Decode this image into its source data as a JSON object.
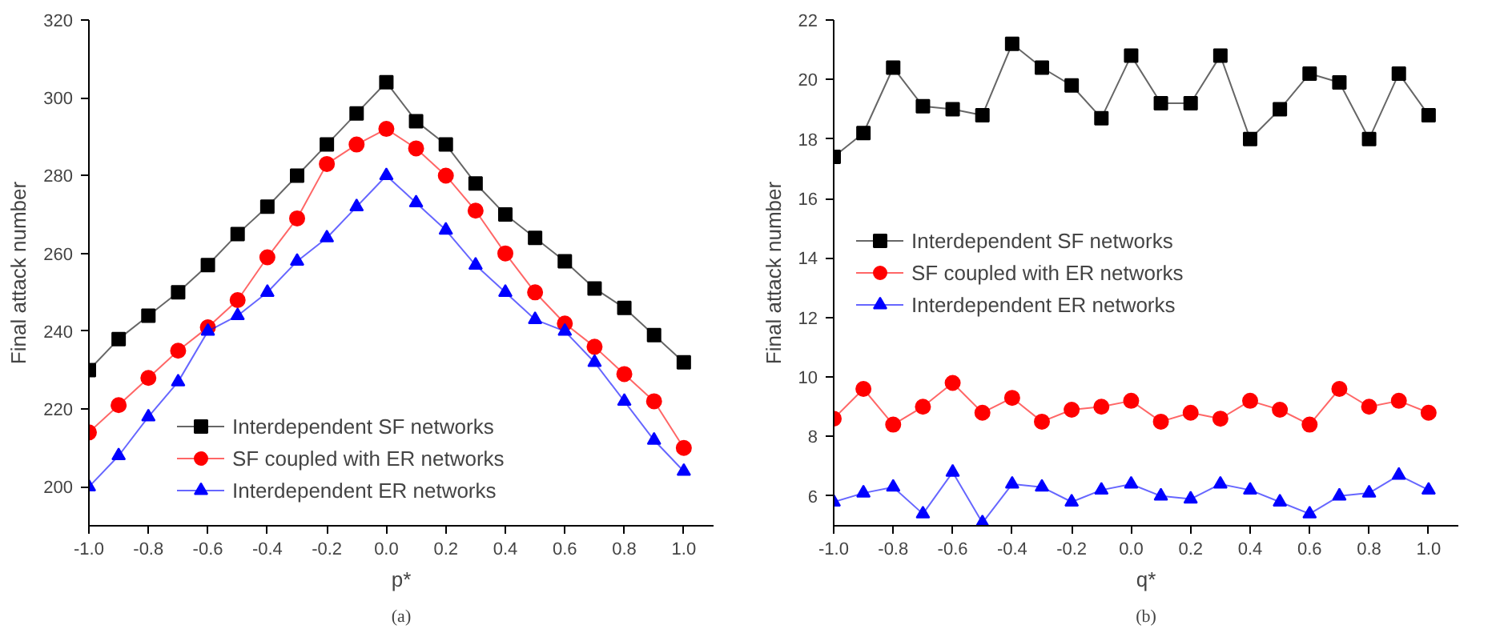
{
  "chart_data": [
    {
      "type": "line",
      "xlabel": "p*",
      "ylabel": "Final attack number",
      "annotations": [
        "(a)"
      ],
      "x": [
        -1.0,
        -0.9,
        -0.8,
        -0.7,
        -0.6,
        -0.5,
        -0.4,
        -0.3,
        -0.2,
        -0.1,
        0.0,
        0.1,
        0.2,
        0.3,
        0.4,
        0.5,
        0.6,
        0.7,
        0.8,
        0.9,
        1.0
      ],
      "xlim": [
        -1.0,
        1.1
      ],
      "xticks": [
        {
          "value": -1,
          "label": "-1.0"
        },
        -0.8,
        -0.6,
        -0.4,
        -0.2,
        {
          "value": 0,
          "label": "0.0"
        },
        0.2,
        0.4,
        0.6,
        0.8,
        {
          "value": 1,
          "label": "1.0"
        }
      ],
      "ylim": [
        190,
        320
      ],
      "yticks": [
        200,
        220,
        240,
        260,
        280,
        300,
        320
      ],
      "grid": false,
      "legend": "bottom left",
      "series": [
        {
          "name": "Interdependent SF networks",
          "color": "#000000",
          "marker": "square",
          "values": [
            230,
            238,
            244,
            250,
            257,
            265,
            272,
            280,
            288,
            296,
            304,
            294,
            288,
            278,
            270,
            264,
            258,
            251,
            246,
            239,
            232
          ]
        },
        {
          "name": "SF coupled with ER networks",
          "color": "#ff0000",
          "marker": "circle",
          "values": [
            214,
            221,
            228,
            235,
            241,
            248,
            259,
            269,
            283,
            288,
            292,
            287,
            280,
            271,
            260,
            250,
            242,
            236,
            229,
            222,
            210
          ]
        },
        {
          "name": "Interdependent ER networks",
          "color": "#0000ff",
          "marker": "triangle",
          "values": [
            200,
            208,
            218,
            227,
            240,
            244,
            250,
            258,
            264,
            272,
            280,
            273,
            266,
            257,
            250,
            243,
            240,
            232,
            222,
            212,
            204
          ]
        }
      ]
    },
    {
      "type": "line",
      "xlabel": "q*",
      "ylabel": "Final attack number",
      "annotations": [
        "(b)"
      ],
      "x": [
        -1.0,
        -0.9,
        -0.8,
        -0.7,
        -0.6,
        -0.5,
        -0.4,
        -0.3,
        -0.2,
        -0.1,
        0.0,
        0.1,
        0.2,
        0.3,
        0.4,
        0.5,
        0.6,
        0.7,
        0.8,
        0.9,
        1.0
      ],
      "xlim": [
        -1.0,
        1.1
      ],
      "xticks": [
        {
          "value": -1,
          "label": "-1.0"
        },
        -0.8,
        -0.6,
        -0.4,
        -0.2,
        {
          "value": 0,
          "label": "0.0"
        },
        0.2,
        0.4,
        0.6,
        0.8,
        {
          "value": 1,
          "label": "1.0"
        }
      ],
      "ylim": [
        5,
        22
      ],
      "yticks": [
        6,
        8,
        10,
        12,
        14,
        16,
        18,
        20,
        22
      ],
      "grid": false,
      "legend": "left",
      "series": [
        {
          "name": "Interdependent SF networks",
          "color": "#000000",
          "marker": "square",
          "values": [
            17.4,
            18.2,
            20.4,
            19.1,
            19.0,
            18.8,
            21.2,
            20.4,
            19.8,
            18.7,
            20.8,
            19.2,
            19.2,
            20.8,
            18.0,
            19.0,
            20.2,
            19.9,
            18.0,
            20.2,
            18.8
          ]
        },
        {
          "name": "SF coupled with ER networks",
          "color": "#ff0000",
          "marker": "circle",
          "values": [
            8.6,
            9.6,
            8.4,
            9.0,
            9.8,
            8.8,
            9.3,
            8.5,
            8.9,
            9.0,
            9.2,
            8.5,
            8.8,
            8.6,
            9.2,
            8.9,
            8.4,
            9.6,
            9.0,
            9.2,
            8.8
          ]
        },
        {
          "name": "Interdependent ER networks",
          "color": "#0000ff",
          "marker": "triangle",
          "values": [
            5.8,
            6.1,
            6.3,
            5.4,
            6.8,
            5.1,
            6.4,
            6.3,
            5.8,
            6.2,
            6.4,
            6.0,
            5.9,
            6.4,
            6.2,
            5.8,
            5.4,
            6.0,
            6.1,
            6.7,
            6.2
          ]
        }
      ]
    }
  ]
}
